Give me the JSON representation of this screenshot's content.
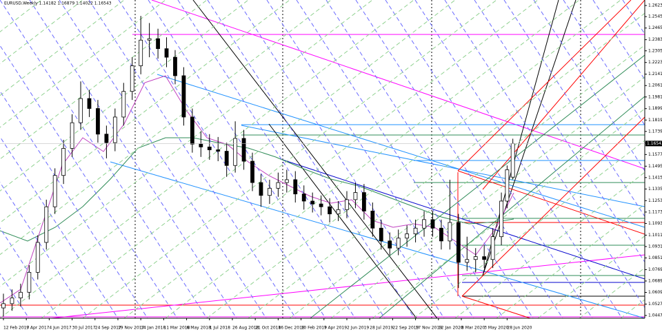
{
  "chart_data": {
    "type": "candlestick",
    "title": "EURUSD,Weekly  1.14182 1.16879 1.14022 1.16543",
    "x": [
      0,
      3,
      6,
      9,
      12,
      15,
      18,
      21,
      24,
      27,
      30,
      33,
      36,
      39,
      42,
      45,
      48,
      51,
      54,
      57,
      60,
      63,
      66,
      69,
      72,
      75,
      78,
      81,
      84,
      87,
      90,
      93,
      96,
      99,
      102,
      105,
      108,
      111,
      114,
      117,
      120,
      123,
      126,
      129,
      132,
      135,
      138,
      141,
      144,
      147,
      150,
      153,
      156,
      159,
      162,
      165,
      168,
      171,
      174,
      176,
      178
    ],
    "open": [
      1.05,
      1.053,
      1.057,
      1.061,
      1.075,
      1.096,
      1.121,
      1.143,
      1.162,
      1.18,
      1.197,
      1.19,
      1.172,
      1.166,
      1.184,
      1.202,
      1.22,
      1.238,
      1.239,
      1.232,
      1.226,
      1.213,
      1.184,
      1.165,
      1.163,
      1.161,
      1.16,
      1.15,
      1.169,
      1.153,
      1.138,
      1.129,
      1.134,
      1.138,
      1.14,
      1.13,
      1.125,
      1.123,
      1.121,
      1.116,
      1.119,
      1.126,
      1.131,
      1.118,
      1.106,
      1.097,
      1.092,
      1.099,
      1.102,
      1.106,
      1.112,
      1.106,
      1.097,
      1.11,
      1.082,
      1.084,
      1.086,
      1.084,
      1.1,
      1.125,
      1.14182
    ],
    "high": [
      1.06,
      1.063,
      1.067,
      1.08,
      1.101,
      1.126,
      1.148,
      1.168,
      1.186,
      1.209,
      1.203,
      1.196,
      1.178,
      1.19,
      1.208,
      1.226,
      1.255,
      1.25,
      1.246,
      1.24,
      1.231,
      1.219,
      1.19,
      1.174,
      1.172,
      1.17,
      1.166,
      1.181,
      1.175,
      1.159,
      1.144,
      1.14,
      1.145,
      1.147,
      1.146,
      1.136,
      1.131,
      1.129,
      1.127,
      1.125,
      1.132,
      1.138,
      1.137,
      1.124,
      1.112,
      1.103,
      1.105,
      1.108,
      1.112,
      1.118,
      1.118,
      1.112,
      1.14,
      1.116,
      1.1,
      1.092,
      1.094,
      1.106,
      1.131,
      1.15,
      1.16879
    ],
    "low": [
      1.044,
      1.048,
      1.051,
      1.056,
      1.07,
      1.091,
      1.116,
      1.137,
      1.156,
      1.175,
      1.184,
      1.166,
      1.155,
      1.16,
      1.178,
      1.196,
      1.214,
      1.226,
      1.225,
      1.219,
      1.207,
      1.178,
      1.159,
      1.156,
      1.154,
      1.153,
      1.142,
      1.145,
      1.147,
      1.132,
      1.121,
      1.123,
      1.128,
      1.131,
      1.124,
      1.119,
      1.117,
      1.115,
      1.11,
      1.111,
      1.113,
      1.12,
      1.112,
      1.1,
      1.091,
      1.087,
      1.087,
      1.093,
      1.096,
      1.1,
      1.1,
      1.091,
      1.091,
      1.064,
      1.076,
      1.075,
      1.078,
      1.078,
      1.094,
      1.12,
      1.14022
    ],
    "close": [
      1.053,
      1.057,
      1.061,
      1.075,
      1.096,
      1.121,
      1.143,
      1.162,
      1.18,
      1.197,
      1.19,
      1.172,
      1.166,
      1.184,
      1.202,
      1.22,
      1.238,
      1.239,
      1.232,
      1.226,
      1.213,
      1.184,
      1.165,
      1.163,
      1.161,
      1.16,
      1.15,
      1.169,
      1.153,
      1.138,
      1.129,
      1.134,
      1.138,
      1.14,
      1.13,
      1.125,
      1.123,
      1.121,
      1.116,
      1.119,
      1.126,
      1.131,
      1.118,
      1.106,
      1.097,
      1.092,
      1.099,
      1.102,
      1.106,
      1.112,
      1.106,
      1.097,
      1.11,
      1.082,
      1.084,
      1.086,
      1.084,
      1.1,
      1.125,
      1.147,
      1.16543
    ],
    "up_color": "#ffffff",
    "down_color": "#000000",
    "xlim": [
      -1.2,
      224.1
    ],
    "ylim": [
      1.04277,
      1.26617
    ],
    "xticks": [
      {
        "value": 0,
        "label": "12 Feb 2017"
      },
      {
        "value": 8,
        "label": "9 Apr 2017"
      },
      {
        "value": 16,
        "label": "4 Jun 2017"
      },
      {
        "value": 24,
        "label": "30 Jul 2017"
      },
      {
        "value": 32,
        "label": "24 Sep 2017"
      },
      {
        "value": 40,
        "label": "19 Nov 2017"
      },
      {
        "value": 48,
        "label": "14 Jan 2018"
      },
      {
        "value": 56,
        "label": "11 Mar 2018"
      },
      {
        "value": 64,
        "label": "6 May 2018"
      },
      {
        "value": 72,
        "label": "1 Jul 2018"
      },
      {
        "value": 80,
        "label": "26 Aug 2018"
      },
      {
        "value": 88,
        "label": "21 Oct 2018"
      },
      {
        "value": 96,
        "label": "16 Dec 2018"
      },
      {
        "value": 104,
        "label": "10 Feb 2019"
      },
      {
        "value": 112,
        "label": "7 Apr 2019"
      },
      {
        "value": 120,
        "label": "2 Jun 2019"
      },
      {
        "value": 128,
        "label": "28 Jul 2019"
      },
      {
        "value": 136,
        "label": "22 Sep 2019"
      },
      {
        "value": 144,
        "label": "17 Nov 2019"
      },
      {
        "value": 152,
        "label": "12 Jan 2020"
      },
      {
        "value": 160,
        "label": "8 Mar 2020"
      },
      {
        "value": 168,
        "label": "3 May 2020"
      },
      {
        "value": 176,
        "label": "28 Jun 2020"
      }
    ],
    "yticks": [
      {
        "value": 1.2623,
        "label": "1.26230"
      },
      {
        "value": 1.2545,
        "label": "1.25450"
      },
      {
        "value": 1.2465,
        "label": "1.24650"
      },
      {
        "value": 1.2383,
        "label": "1.23830"
      },
      {
        "value": 1.2305,
        "label": "1.23050"
      },
      {
        "value": 1.2223,
        "label": "1.22230"
      },
      {
        "value": 1.2141,
        "label": "1.21410"
      },
      {
        "value": 1.2061,
        "label": "1.20610"
      },
      {
        "value": 1.1981,
        "label": "1.19810"
      },
      {
        "value": 1.1899,
        "label": "1.18990"
      },
      {
        "value": 1.1819,
        "label": "1.18190"
      },
      {
        "value": 1.1739,
        "label": "1.17390"
      },
      {
        "value": 1.1657,
        "label": "1.16570"
      },
      {
        "value": 1.1577,
        "label": "1.15770"
      },
      {
        "value": 1.1495,
        "label": "1.14950"
      },
      {
        "value": 1.1415,
        "label": "1.14150"
      },
      {
        "value": 1.1335,
        "label": "1.13350"
      },
      {
        "value": 1.1253,
        "label": "1.12530"
      },
      {
        "value": 1.1173,
        "label": "1.11730"
      },
      {
        "value": 1.1093,
        "label": "1.10930"
      },
      {
        "value": 1.1011,
        "label": "1.10110"
      },
      {
        "value": 1.0931,
        "label": "1.09310"
      },
      {
        "value": 1.0851,
        "label": "1.08510"
      },
      {
        "value": 1.0769,
        "label": "1.07690"
      },
      {
        "value": 1.0689,
        "label": "1.06890"
      },
      {
        "value": 1.0609,
        "label": "1.06090"
      },
      {
        "value": 1.0527,
        "label": "1.05270"
      },
      {
        "value": 1.0447,
        "label": "1.04470"
      }
    ],
    "current_price": {
      "value": 1.16543,
      "label": "1.16543"
    }
  }
}
